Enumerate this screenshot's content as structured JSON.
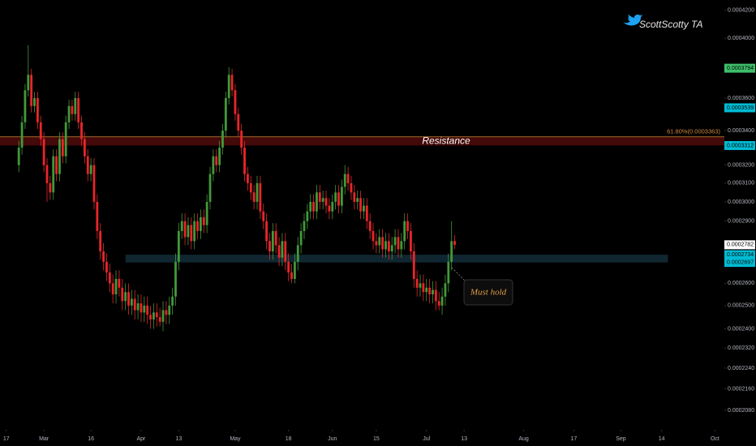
{
  "chart_data": {
    "type": "candlestick",
    "watermark": "ScottScotty TA",
    "up_color": "#43993a",
    "down_color": "#e8262a",
    "log_scale": true,
    "ylim": [
      0.000201,
      0.0004277
    ],
    "yticks": [
      {
        "value": 0.00042,
        "label": "0.0004200"
      },
      {
        "value": 0.0004,
        "label": "0.0004000"
      },
      {
        "value": 0.00036,
        "label": "0.0003600"
      },
      {
        "value": 0.00034,
        "label": "0.0003400"
      },
      {
        "value": 0.00032,
        "label": "0.0003200"
      },
      {
        "value": 0.00031,
        "label": "0.0003100"
      },
      {
        "value": 0.0003,
        "label": "0.0003000"
      },
      {
        "value": 0.00029,
        "label": "0.0002900"
      },
      {
        "value": 0.00026,
        "label": "0.0002600"
      },
      {
        "value": 0.00025,
        "label": "0.0002500"
      },
      {
        "value": 0.00024,
        "label": "0.0002400"
      },
      {
        "value": 0.000232,
        "label": "0.0002320"
      },
      {
        "value": 0.000224,
        "label": "0.0002240"
      },
      {
        "value": 0.000216,
        "label": "0.0002160"
      },
      {
        "value": 0.000208,
        "label": "0.0002080"
      }
    ],
    "xlim": [
      -6,
      225
    ],
    "xticks": [
      {
        "value": -4,
        "label": "17"
      },
      {
        "value": 8,
        "label": "Mar"
      },
      {
        "value": 23,
        "label": "16"
      },
      {
        "value": 39,
        "label": "Apr"
      },
      {
        "value": 51,
        "label": "13"
      },
      {
        "value": 69,
        "label": "May"
      },
      {
        "value": 86,
        "label": "18"
      },
      {
        "value": 100,
        "label": "Jun"
      },
      {
        "value": 114,
        "label": "15"
      },
      {
        "value": 130,
        "label": "Jul"
      },
      {
        "value": 142,
        "label": "13"
      },
      {
        "value": 161,
        "label": "Aug"
      },
      {
        "value": 177,
        "label": "17"
      },
      {
        "value": 192,
        "label": "Sep"
      },
      {
        "value": 205,
        "label": "14"
      },
      {
        "value": 222,
        "label": "Oct"
      }
    ],
    "open": [
      0.00032,
      0.00033,
      0.000345,
      0.000365,
      0.000375,
      0.000355,
      0.00036,
      0.000345,
      0.000335,
      0.00032,
      0.00031,
      0.000305,
      0.000325,
      0.000315,
      0.000335,
      0.000325,
      0.000345,
      0.000355,
      0.00035,
      0.00036,
      0.000345,
      0.000335,
      0.000325,
      0.000315,
      0.00032,
      0.0003,
      0.000285,
      0.000275,
      0.00027,
      0.000265,
      0.00026,
      0.000255,
      0.000262,
      0.000258,
      0.000252,
      0.000256,
      0.00025,
      0.000253,
      0.000248,
      0.000251,
      0.000247,
      0.00025,
      0.000246,
      0.000244,
      0.000247,
      0.000245,
      0.000243,
      0.000248,
      0.000246,
      0.00025,
      0.000254,
      0.00027,
      0.000285,
      0.00029,
      0.000282,
      0.000288,
      0.00028,
      0.00029,
      0.000285,
      0.000292,
      0.000288,
      0.0003,
      0.000315,
      0.000325,
      0.00032,
      0.00033,
      0.00034,
      0.00036,
      0.000375,
      0.000365,
      0.00035,
      0.00034,
      0.00033,
      0.000315,
      0.00031,
      0.000305,
      0.0003,
      0.00031,
      0.000295,
      0.00029,
      0.00028,
      0.000275,
      0.000285,
      0.000278,
      0.000272,
      0.00028,
      0.00027,
      0.000265,
      0.000262,
      0.00027,
      0.000278,
      0.000285,
      0.00029,
      0.000295,
      0.0003,
      0.000295,
      0.000305,
      0.0003,
      0.000302,
      0.000298,
      0.000295,
      0.0003,
      0.000305,
      0.000298,
      0.000308,
      0.000315,
      0.00031,
      0.000305,
      0.0003,
      0.000302,
      0.000295,
      0.000298,
      0.00029,
      0.000285,
      0.00028,
      0.000278,
      0.000282,
      0.000276,
      0.00028,
      0.000275,
      0.000278,
      0.000282,
      0.000276,
      0.00028,
      0.00029,
      0.000285,
      0.000275,
      0.000262,
      0.000258,
      0.00026,
      0.000256,
      0.000258,
      0.000255,
      0.000257,
      0.000252,
      0.00025,
      0.000254,
      0.00026,
      0.00027,
      0.00028
    ],
    "high": [
      0.000334,
      0.000349,
      0.000369,
      0.000395,
      0.000379,
      0.000364,
      0.000364,
      0.000349,
      0.000339,
      0.000324,
      0.000314,
      0.000329,
      0.000329,
      0.000339,
      0.000339,
      0.000349,
      0.000359,
      0.000359,
      0.000364,
      0.000364,
      0.000349,
      0.000339,
      0.000329,
      0.000324,
      0.000324,
      0.000304,
      0.000289,
      0.000279,
      0.000274,
      0.000269,
      0.000264,
      0.000266,
      0.000266,
      0.000262,
      0.00026,
      0.00026,
      0.000257,
      0.000257,
      0.000255,
      0.000255,
      0.000254,
      0.000254,
      0.00025,
      0.000251,
      0.000251,
      0.000249,
      0.000252,
      0.000252,
      0.000254,
      0.000258,
      0.000274,
      0.000289,
      0.000294,
      0.000294,
      0.000292,
      0.000292,
      0.000294,
      0.000294,
      0.000296,
      0.000296,
      0.000304,
      0.000319,
      0.000329,
      0.000329,
      0.000334,
      0.000344,
      0.000364,
      0.00038,
      0.000379,
      0.000369,
      0.000354,
      0.000344,
      0.000334,
      0.000319,
      0.000314,
      0.000309,
      0.000314,
      0.000314,
      0.000299,
      0.000294,
      0.000284,
      0.000289,
      0.000289,
      0.000282,
      0.000284,
      0.000284,
      0.000274,
      0.000269,
      0.000274,
      0.000282,
      0.000289,
      0.000294,
      0.000299,
      0.000304,
      0.000304,
      0.000309,
      0.000309,
      0.000306,
      0.000306,
      0.000302,
      0.000304,
      0.000309,
      0.000309,
      0.000312,
      0.00032,
      0.000319,
      0.000314,
      0.000309,
      0.000306,
      0.000306,
      0.000302,
      0.000302,
      0.000294,
      0.000289,
      0.000284,
      0.000286,
      0.000286,
      0.000284,
      0.000284,
      0.000282,
      0.000286,
      0.000286,
      0.000284,
      0.000294,
      0.000294,
      0.000289,
      0.000279,
      0.000266,
      0.000264,
      0.000264,
      0.000262,
      0.000262,
      0.000261,
      0.000261,
      0.000256,
      0.000258,
      0.000264,
      0.000274,
      0.00029,
      0.000283
    ],
    "low": [
      0.000316,
      0.000326,
      0.000341,
      0.000361,
      0.000351,
      0.000351,
      0.000341,
      0.000331,
      0.000316,
      0.0003,
      0.000301,
      0.000301,
      0.000311,
      0.000311,
      0.000321,
      0.000321,
      0.000341,
      0.000346,
      0.000346,
      0.000341,
      0.000331,
      0.000321,
      0.000311,
      0.000311,
      0.000296,
      0.000281,
      0.000271,
      0.000266,
      0.000261,
      0.000256,
      0.000251,
      0.000251,
      0.000254,
      0.000248,
      0.000248,
      0.000246,
      0.000246,
      0.000244,
      0.000244,
      0.000243,
      0.000243,
      0.000242,
      0.00024,
      0.00024,
      0.000241,
      0.000241,
      0.000239,
      0.000242,
      0.000242,
      0.000246,
      0.00025,
      0.000266,
      0.000281,
      0.000278,
      0.000278,
      0.000276,
      0.000276,
      0.000281,
      0.000281,
      0.000284,
      0.000284,
      0.000296,
      0.000311,
      0.000316,
      0.000316,
      0.000326,
      0.000336,
      0.000356,
      0.000361,
      0.000346,
      0.000336,
      0.000326,
      0.000311,
      0.000306,
      0.000301,
      0.000296,
      0.000296,
      0.000291,
      0.000286,
      0.000276,
      0.000271,
      0.000271,
      0.000274,
      0.000268,
      0.000268,
      0.000266,
      0.000261,
      0.00026,
      0.00026,
      0.000266,
      0.000274,
      0.000281,
      0.000286,
      0.000291,
      0.000291,
      0.000291,
      0.000296,
      0.000296,
      0.000294,
      0.000291,
      0.000291,
      0.000296,
      0.000294,
      0.000294,
      0.000304,
      0.000306,
      0.000301,
      0.000296,
      0.000296,
      0.000291,
      0.000291,
      0.000286,
      0.000281,
      0.000276,
      0.000274,
      0.000274,
      0.000272,
      0.000272,
      0.000271,
      0.000271,
      0.000274,
      0.000272,
      0.000272,
      0.000276,
      0.000281,
      0.000271,
      0.000258,
      0.000254,
      0.000254,
      0.000252,
      0.000252,
      0.000251,
      0.000251,
      0.000248,
      0.000248,
      0.000246,
      0.00025,
      0.000256,
      0.000266,
      0.000276
    ],
    "close": [
      0.00033,
      0.000345,
      0.000365,
      0.000375,
      0.000355,
      0.00036,
      0.000345,
      0.000335,
      0.00032,
      0.00031,
      0.000305,
      0.000325,
      0.000315,
      0.000335,
      0.000325,
      0.000345,
      0.000355,
      0.00035,
      0.00036,
      0.000345,
      0.000335,
      0.000325,
      0.000315,
      0.00032,
      0.0003,
      0.000285,
      0.000275,
      0.00027,
      0.000265,
      0.00026,
      0.000255,
      0.000262,
      0.000258,
      0.000252,
      0.000256,
      0.00025,
      0.000253,
      0.000248,
      0.000251,
      0.000247,
      0.00025,
      0.000246,
      0.000244,
      0.000247,
      0.000245,
      0.000243,
      0.000248,
      0.000246,
      0.00025,
      0.000254,
      0.00027,
      0.000285,
      0.00029,
      0.000282,
      0.000288,
      0.00028,
      0.00029,
      0.000285,
      0.000292,
      0.000288,
      0.0003,
      0.000315,
      0.000325,
      0.00032,
      0.00033,
      0.00034,
      0.00036,
      0.000375,
      0.000365,
      0.00035,
      0.00034,
      0.00033,
      0.000315,
      0.00031,
      0.000305,
      0.0003,
      0.00031,
      0.000295,
      0.00029,
      0.00028,
      0.000275,
      0.000285,
      0.000278,
      0.000272,
      0.00028,
      0.00027,
      0.000265,
      0.000262,
      0.00027,
      0.000278,
      0.000285,
      0.00029,
      0.000295,
      0.0003,
      0.000295,
      0.000305,
      0.0003,
      0.000302,
      0.000298,
      0.000295,
      0.0003,
      0.000305,
      0.000298,
      0.000308,
      0.000315,
      0.00031,
      0.000305,
      0.0003,
      0.000302,
      0.000295,
      0.000298,
      0.00029,
      0.000285,
      0.00028,
      0.000278,
      0.000282,
      0.000276,
      0.00028,
      0.000275,
      0.000278,
      0.000282,
      0.000276,
      0.00028,
      0.00029,
      0.000285,
      0.000275,
      0.000262,
      0.000258,
      0.00026,
      0.000256,
      0.000258,
      0.000255,
      0.000257,
      0.000252,
      0.00025,
      0.000254,
      0.00026,
      0.00027,
      0.00028,
      0.0002782
    ],
    "resistance": {
      "label": "Resistance",
      "low": 0.0003312,
      "high": 0.0003363
    },
    "fib": {
      "label": "61.80%(0.0003363)",
      "value": 0.0003363,
      "color": "#d08a3a"
    },
    "support": {
      "low": 0.0002697,
      "high": 0.0002734,
      "from": 34,
      "to": 207
    },
    "annotation": "Must hold",
    "price_labels": [
      {
        "value": 0.0003794,
        "color": "#3fbf6a",
        "text_color": "#000"
      },
      {
        "value": 0.0003539,
        "color": "#00bcd4",
        "text_color": "#000"
      },
      {
        "value": 0.0003312,
        "color": "#00bcd4",
        "text_color": "#000"
      },
      {
        "value": 0.0002734,
        "color": "#00bcd4",
        "text_color": "#000"
      },
      {
        "value": 0.0002697,
        "color": "#00bcd4",
        "text_color": "#000"
      },
      {
        "value": 0.0002782,
        "color": "#ffffff",
        "text_color": "#000"
      }
    ]
  }
}
